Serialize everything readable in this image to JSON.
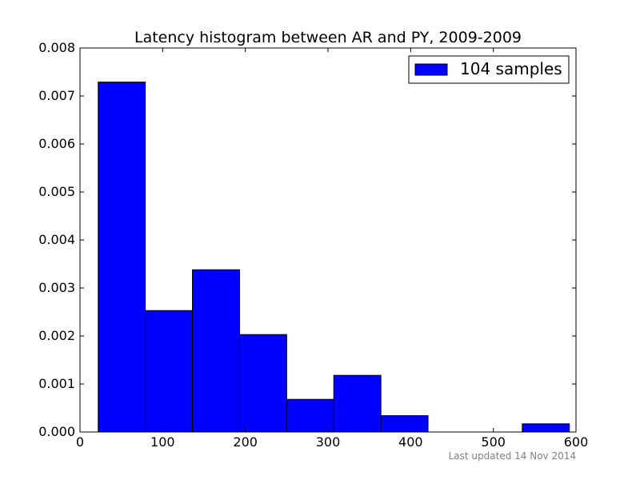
{
  "chart_data": {
    "type": "bar",
    "title": "Latency histogram between AR and PY, 2009-2009",
    "xlabel": "",
    "ylabel": "",
    "xlim": [
      0,
      600
    ],
    "ylim": [
      0,
      0.008
    ],
    "x_ticks": [
      "0",
      "100",
      "200",
      "300",
      "400",
      "500",
      "600"
    ],
    "y_ticks": [
      "0.000",
      "0.001",
      "0.002",
      "0.003",
      "0.004",
      "0.005",
      "0.006",
      "0.007",
      "0.008"
    ],
    "bin_edges": [
      22,
      79,
      136,
      193,
      250,
      307,
      364,
      421,
      478,
      535,
      592
    ],
    "values": [
      0.00729,
      0.00253,
      0.00338,
      0.00203,
      0.00068,
      0.00118,
      0.00034,
      0,
      0,
      0.00017
    ],
    "bar_color": "#0000ff",
    "grid": false,
    "legend": {
      "label": "104 samples",
      "placement": "top-right"
    },
    "annotation": "Last updated 14 Nov 2014"
  }
}
